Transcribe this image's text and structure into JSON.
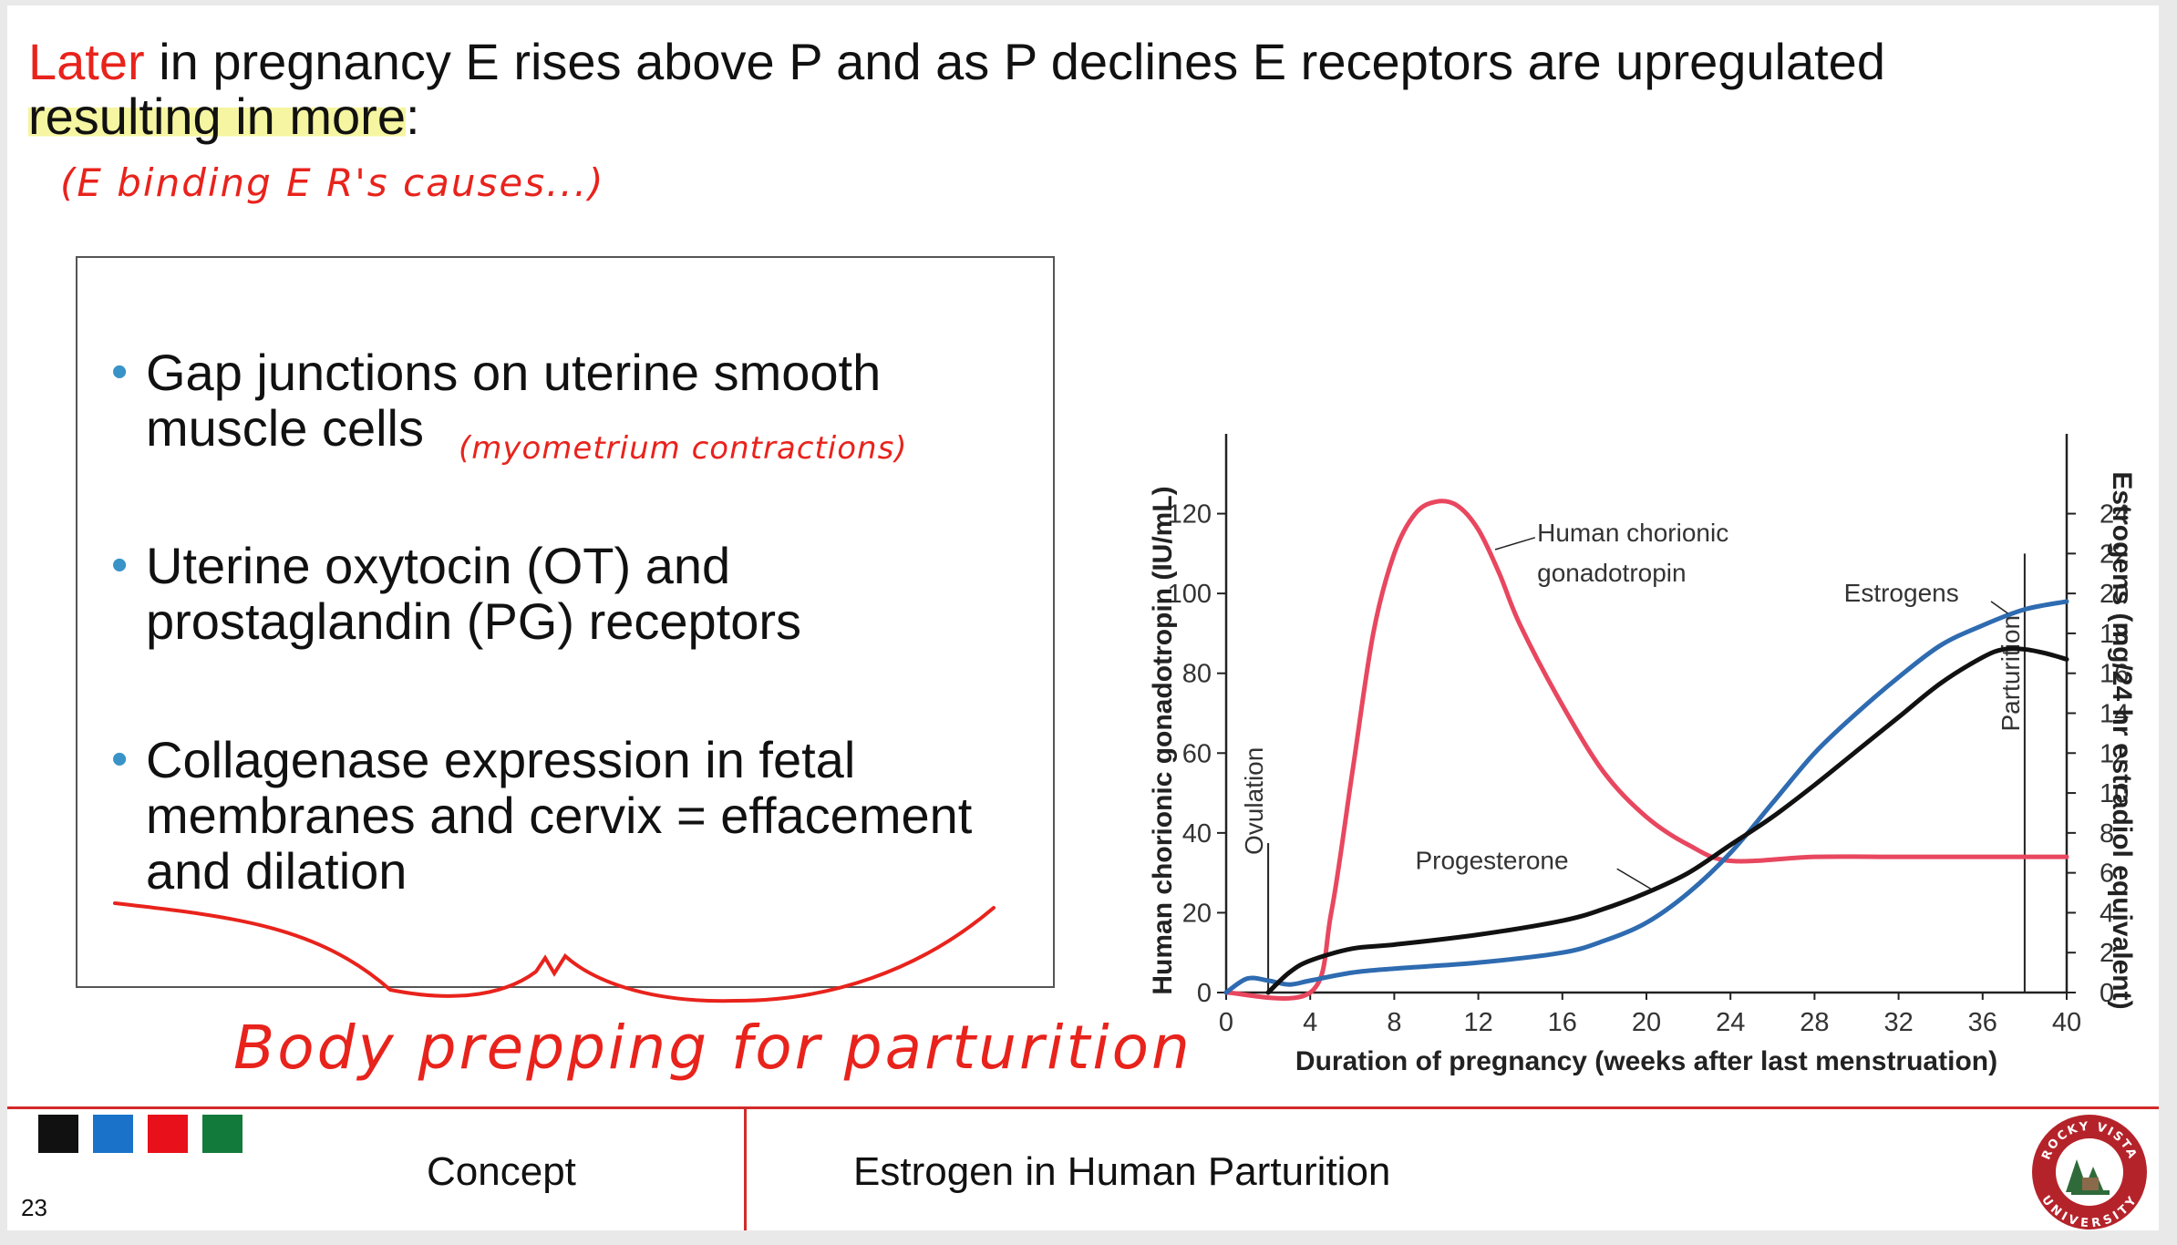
{
  "heading": {
    "word_red": "Later",
    "line1_rest": " in pregnancy E rises above P and as P declines E receptors are upregulated",
    "line2": "resulting in more",
    "line2_colon": ":"
  },
  "annotations": {
    "note1": "(E binding E R's causes...)",
    "note2": "(myometrium contractions)",
    "note3": "Body prepping for parturition"
  },
  "bullets": [
    {
      "text": "Gap junctions on uterine smooth muscle cells"
    },
    {
      "text": "Uterine oxytocin (OT) and prostaglandin (PG) receptors"
    },
    {
      "text": "Collagenase expression in fetal membranes and cervix = effacement and dilation"
    }
  ],
  "bullet_char": "•",
  "chart_data": {
    "type": "line",
    "xlabel": "Duration of pregnancy (weeks after last menstruation)",
    "ylabel_left": "Human chorionic gonadotropin (IU/mL)",
    "ylabel_right": "Estrogens (mg/24 hr estradiol equivalent)",
    "x_ticks": [
      0,
      4,
      8,
      12,
      16,
      20,
      24,
      28,
      32,
      36,
      40
    ],
    "y_left_ticks": [
      0,
      20,
      40,
      60,
      80,
      100,
      120
    ],
    "y_right_ticks": [
      0,
      2,
      4,
      6,
      8,
      10,
      12,
      14,
      16,
      18,
      20,
      22,
      24
    ],
    "xlim": [
      0,
      40
    ],
    "ylim_left": [
      0,
      140
    ],
    "ylim_right": [
      0,
      28
    ],
    "markers": [
      {
        "label": "Ovulation",
        "x": 2
      },
      {
        "label": "Parturition",
        "x": 38
      }
    ],
    "series": [
      {
        "name": "Human chorionic gonadotropin",
        "color": "#e8475f",
        "axis": "left",
        "x": [
          0,
          4,
          5,
          6,
          7,
          8,
          9,
          10,
          11,
          12,
          13,
          14,
          16,
          18,
          20,
          22,
          24,
          28,
          32,
          36,
          40
        ],
        "y": [
          0,
          0,
          20,
          55,
          90,
          110,
          120,
          123,
          122,
          116,
          105,
          92,
          72,
          55,
          44,
          37,
          33,
          34,
          34,
          34,
          34
        ]
      },
      {
        "name": "Estrogens",
        "color": "#2e6bb0",
        "axis": "right",
        "x": [
          0,
          1,
          2,
          3,
          4,
          6,
          8,
          12,
          16,
          18,
          20,
          22,
          24,
          26,
          28,
          30,
          32,
          34,
          36,
          38,
          40
        ],
        "y": [
          0,
          0.7,
          0.6,
          0.4,
          0.6,
          1.0,
          1.2,
          1.5,
          2.0,
          2.6,
          3.5,
          5.0,
          7.0,
          9.5,
          12.0,
          14.0,
          15.8,
          17.4,
          18.4,
          19.2,
          19.6
        ]
      },
      {
        "name": "Progesterone",
        "color": "#111111",
        "axis": "right",
        "x": [
          2,
          3,
          4,
          6,
          8,
          12,
          16,
          18,
          20,
          22,
          24,
          26,
          28,
          30,
          32,
          34,
          36,
          37,
          38,
          39,
          40
        ],
        "y": [
          0,
          1.0,
          1.6,
          2.2,
          2.4,
          2.9,
          3.6,
          4.2,
          5.0,
          6.0,
          7.4,
          8.8,
          10.4,
          12.1,
          13.8,
          15.5,
          16.8,
          17.2,
          17.2,
          17.0,
          16.7
        ]
      }
    ],
    "series_labels": {
      "hcg_line1": "Human chorionic",
      "hcg_line2": "gonadotropin",
      "estrogens": "Estrogens",
      "progesterone": "Progesterone"
    }
  },
  "footer": {
    "concept": "Concept",
    "topic": "Estrogen in Human Parturition",
    "slide_number": "23",
    "swatches": [
      "#111111",
      "#1a73c9",
      "#e8101a",
      "#127a3a"
    ],
    "logo_text_top": "ROCKY VISTA",
    "logo_text_bottom": "UNIVERSITY",
    "logo_color": "#b5232a"
  }
}
